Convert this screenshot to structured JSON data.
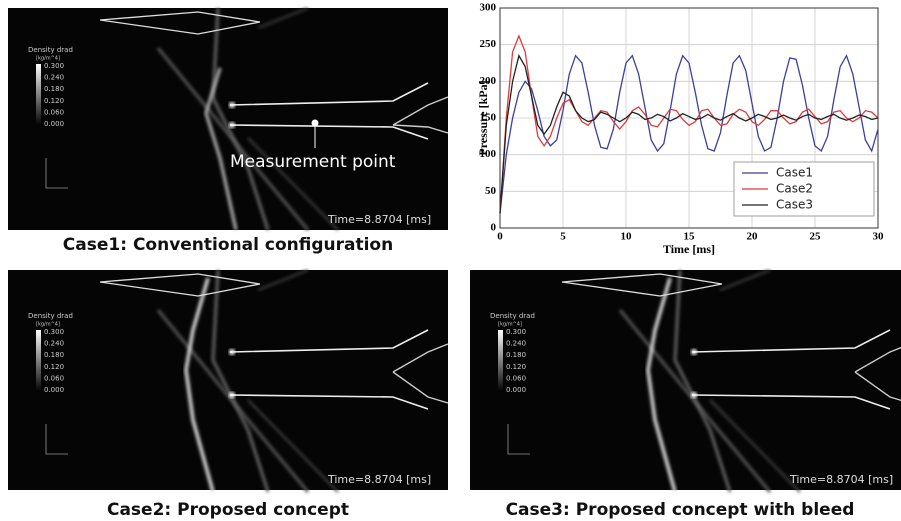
{
  "chart_data": {
    "type": "line",
    "x_label": "Time [ms]",
    "y_label": "Pressure [kPa]",
    "xlim": [
      0,
      30
    ],
    "xticks": [
      0,
      5,
      10,
      15,
      20,
      25,
      30
    ],
    "ylim": [
      0,
      300
    ],
    "yticks": [
      0,
      50,
      100,
      150,
      200,
      250,
      300
    ],
    "grid": true,
    "legend": "lower right",
    "x": [
      0,
      0.5,
      1,
      1.5,
      2,
      2.5,
      3,
      3.5,
      4,
      4.5,
      5,
      5.5,
      6,
      6.5,
      7,
      7.5,
      8,
      8.5,
      9,
      9.5,
      10,
      10.5,
      11,
      11.5,
      12,
      12.5,
      13,
      13.5,
      14,
      14.5,
      15,
      15.5,
      16,
      16.5,
      17,
      17.5,
      18,
      18.5,
      19,
      19.5,
      20,
      20.5,
      21,
      21.5,
      22,
      22.5,
      23,
      23.5,
      24,
      24.5,
      25,
      25.5,
      26,
      26.5,
      27,
      27.5,
      28,
      28.5,
      29,
      29.5,
      30
    ],
    "series": [
      {
        "name": "Case1",
        "color": "#3a3f9e",
        "values": [
          20,
          100,
          150,
          185,
          200,
          190,
          160,
          125,
          112,
          120,
          160,
          210,
          235,
          225,
          185,
          140,
          110,
          108,
          135,
          185,
          225,
          235,
          210,
          165,
          120,
          105,
          115,
          160,
          210,
          235,
          225,
          185,
          140,
          108,
          105,
          130,
          180,
          225,
          235,
          215,
          170,
          125,
          105,
          110,
          150,
          200,
          232,
          230,
          195,
          150,
          112,
          105,
          125,
          175,
          220,
          235,
          210,
          165,
          120,
          105,
          135
        ]
      },
      {
        "name": "Case2",
        "color": "#e03a3a",
        "values": [
          20,
          150,
          240,
          262,
          240,
          180,
          125,
          112,
          125,
          150,
          170,
          175,
          160,
          145,
          140,
          150,
          160,
          158,
          145,
          135,
          145,
          160,
          165,
          155,
          140,
          138,
          150,
          162,
          160,
          148,
          140,
          145,
          160,
          162,
          150,
          140,
          142,
          155,
          162,
          158,
          145,
          140,
          148,
          160,
          160,
          150,
          142,
          145,
          158,
          162,
          152,
          142,
          145,
          158,
          160,
          150,
          145,
          150,
          160,
          158,
          150
        ]
      },
      {
        "name": "Case3",
        "color": "#222222",
        "values": [
          20,
          140,
          200,
          235,
          220,
          180,
          140,
          128,
          140,
          165,
          185,
          180,
          160,
          150,
          145,
          148,
          158,
          155,
          150,
          145,
          150,
          158,
          155,
          148,
          150,
          155,
          152,
          146,
          150,
          156,
          152,
          148,
          150,
          155,
          150,
          147,
          152,
          156,
          150,
          146,
          150,
          155,
          152,
          148,
          150,
          154,
          150,
          147,
          152,
          155,
          150,
          148,
          152,
          155,
          150,
          147,
          150,
          154,
          152,
          148,
          150
        ]
      }
    ]
  },
  "colorbar": {
    "title": "Density drad",
    "unit": "[kg/m^4]",
    "ticks": [
      "0.300",
      "0.240",
      "0.180",
      "0.120",
      "0.060",
      "0.000"
    ]
  },
  "panels": [
    {
      "caption": "Case1: Conventional configuration",
      "time": "Time=8.8704 [ms]",
      "annotation": "Measurement point"
    },
    {
      "caption": "Case2: Proposed concept",
      "time": "Time=8.8704 [ms]"
    },
    {
      "caption": "Case3: Proposed concept with bleed",
      "time": "Time=8.8704 [ms]"
    }
  ]
}
